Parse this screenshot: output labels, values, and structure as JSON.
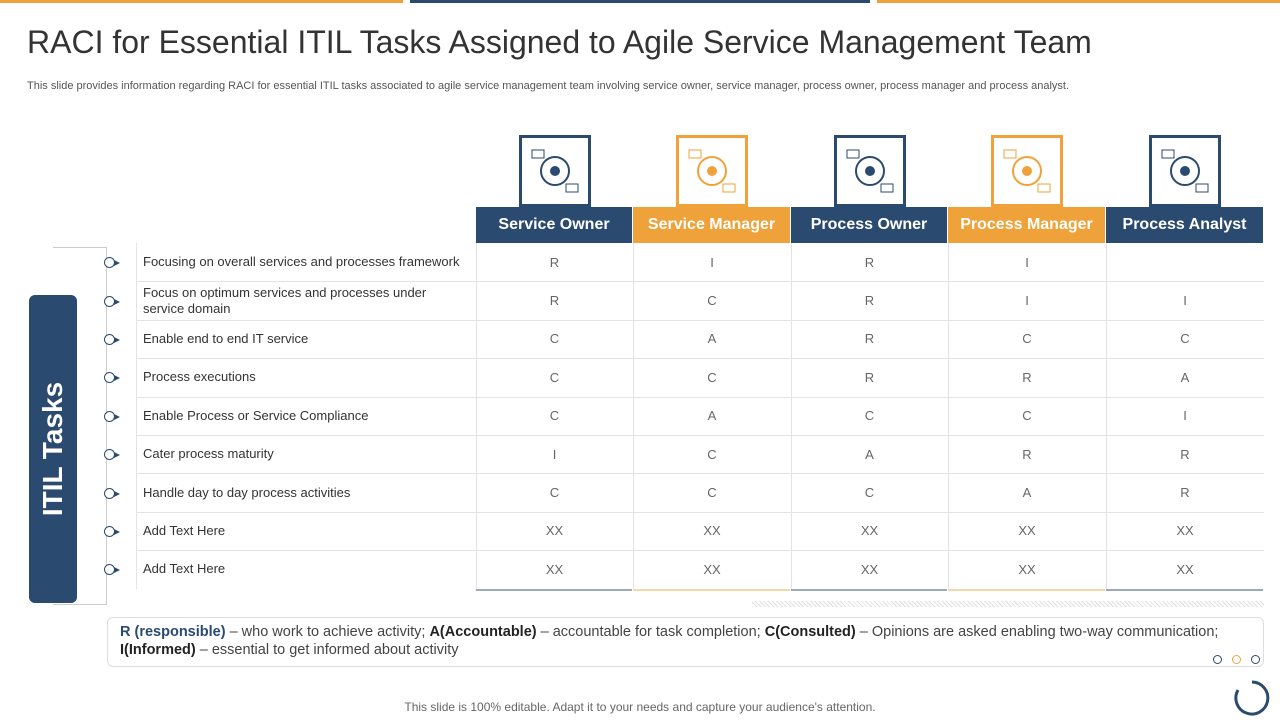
{
  "header": {
    "title": "RACI for Essential ITIL Tasks Assigned to Agile Service Management Team",
    "subtitle": "This slide provides information regarding RACI for essential ITIL tasks associated to agile service management team involving service owner, service manager, process owner, process manager and process analyst."
  },
  "side_label": "ITIL Tasks",
  "table": {
    "columns": [
      "Service Owner",
      "Service Manager",
      "Process Owner",
      "Process Manager",
      "Process Analyst"
    ],
    "rows": [
      {
        "task": "Focusing on overall  services and processes framework",
        "cells": [
          "R",
          "I",
          "R",
          "I",
          null
        ]
      },
      {
        "task": "Focus on optimum services and processes under service domain",
        "cells": [
          "R",
          "C",
          "R",
          "I",
          "I"
        ]
      },
      {
        "task": "Enable end to end IT service",
        "cells": [
          "C",
          "A",
          "R",
          "C",
          "C"
        ]
      },
      {
        "task": "Process executions",
        "cells": [
          "C",
          "C",
          "R",
          "R",
          "A"
        ]
      },
      {
        "task": "Enable Process or Service Compliance",
        "cells": [
          "C",
          "A",
          "C",
          "C",
          "I"
        ]
      },
      {
        "task": "Cater process maturity",
        "cells": [
          "I",
          "C",
          "A",
          "R",
          "R"
        ]
      },
      {
        "task": "Handle day to day process activities",
        "cells": [
          "C",
          "C",
          "C",
          "A",
          "R"
        ]
      },
      {
        "task": "Add Text Here",
        "cells": [
          "XX",
          "XX",
          "XX",
          "XX",
          "XX"
        ]
      },
      {
        "task": "Add Text Here",
        "cells": [
          "XX",
          "XX",
          "XX",
          "XX",
          "XX"
        ]
      }
    ]
  },
  "legend": [
    {
      "term": "R (responsible)",
      "text": " – who work to achieve activity; "
    },
    {
      "term": "A(Accountable)",
      "text": "  – accountable for task completion; "
    },
    {
      "term": "C(Consulted)",
      "text": " – Opinions are asked enabling two-way communication; "
    },
    {
      "term": "I(Informed)",
      "text": " – essential to get informed about activity"
    }
  ],
  "footer": "This slide is 100% editable. Adapt it to your needs and capture your audience's attention."
}
